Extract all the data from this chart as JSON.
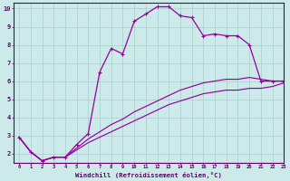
{
  "line1_x": [
    0,
    1,
    2,
    3,
    4,
    5,
    6,
    7,
    8,
    9,
    10,
    11,
    12,
    13,
    14,
    15,
    16,
    17,
    18,
    19,
    20,
    21,
    22,
    23
  ],
  "line1_y": [
    2.9,
    2.1,
    1.6,
    1.8,
    1.8,
    2.5,
    3.1,
    6.5,
    7.8,
    7.5,
    9.3,
    9.7,
    10.1,
    10.1,
    9.6,
    9.5,
    8.5,
    8.6,
    8.5,
    8.5,
    8.0,
    6.0,
    6.0,
    6.0
  ],
  "line2_x": [
    0,
    1,
    2,
    3,
    4,
    5,
    6,
    7,
    8,
    9,
    10,
    11,
    12,
    13,
    14,
    15,
    16,
    17,
    18,
    19,
    20,
    21,
    22,
    23
  ],
  "line2_y": [
    2.9,
    2.1,
    1.6,
    1.8,
    1.8,
    2.3,
    2.8,
    3.2,
    3.6,
    3.9,
    4.3,
    4.6,
    4.9,
    5.2,
    5.5,
    5.7,
    5.9,
    6.0,
    6.1,
    6.1,
    6.2,
    6.1,
    6.0,
    6.0
  ],
  "line3_x": [
    0,
    1,
    2,
    3,
    4,
    5,
    6,
    7,
    8,
    9,
    10,
    11,
    12,
    13,
    14,
    15,
    16,
    17,
    18,
    19,
    20,
    21,
    22,
    23
  ],
  "line3_y": [
    2.9,
    2.1,
    1.6,
    1.8,
    1.8,
    2.2,
    2.6,
    2.9,
    3.2,
    3.5,
    3.8,
    4.1,
    4.4,
    4.7,
    4.9,
    5.1,
    5.3,
    5.4,
    5.5,
    5.5,
    5.6,
    5.6,
    5.7,
    5.9
  ],
  "line_color": "#990099",
  "bg_color": "#cceaea",
  "grid_color": "#aacccc",
  "xlabel": "Windchill (Refroidissement éolien,°C)",
  "ylim": [
    1.5,
    10.3
  ],
  "xlim": [
    -0.5,
    23
  ],
  "yticks": [
    2,
    3,
    4,
    5,
    6,
    7,
    8,
    9,
    10
  ],
  "xticks": [
    0,
    1,
    2,
    3,
    4,
    5,
    6,
    7,
    8,
    9,
    10,
    11,
    12,
    13,
    14,
    15,
    16,
    17,
    18,
    19,
    20,
    21,
    22,
    23
  ]
}
